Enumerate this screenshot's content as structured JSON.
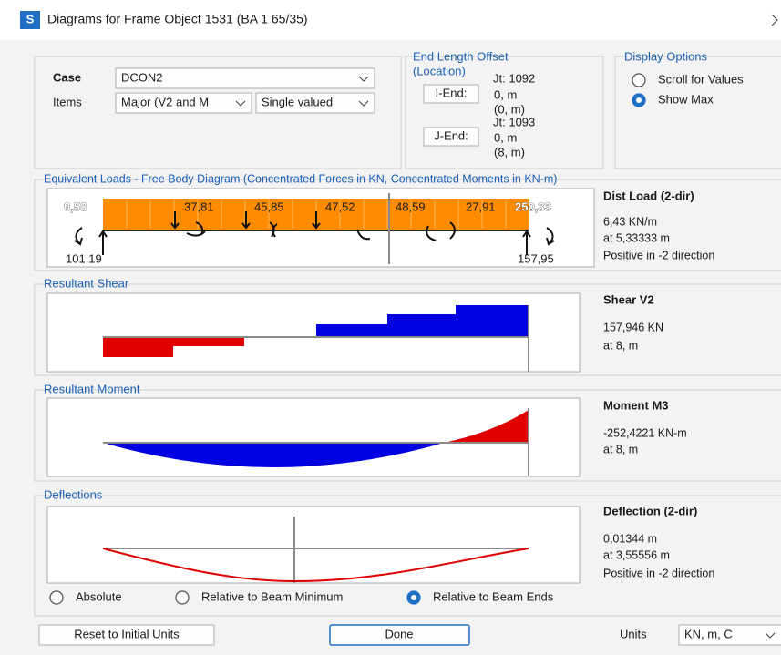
{
  "window": {
    "title": "Diagrams for Frame Object 1531  (BA 1 65/35)",
    "icon": "S"
  },
  "case": {
    "label": "Case",
    "value": "DCON2"
  },
  "items": {
    "label": "Items",
    "value": "Major (V2 and M",
    "mode": "Single valued"
  },
  "end_length_offset": {
    "title": "End Length Offset",
    "subtitle": "(Location)",
    "i_end": {
      "button": "I-End:",
      "joint": "Jt:  1092",
      "offset": "0, m",
      "location": "(0, m)"
    },
    "j_end": {
      "button": "J-End:",
      "joint": "Jt:  1093",
      "offset": "0, m",
      "location": "(8, m)"
    }
  },
  "display_options": {
    "title": "Display Options",
    "options": [
      {
        "label": "Scroll for Values",
        "selected": false
      },
      {
        "label": "Show Max",
        "selected": true
      }
    ]
  },
  "free_body": {
    "title": "Equivalent Loads - Free Body Diagram  (Concentrated Forces in KN, Concentrated Moments in KN-m)",
    "loads": [
      "0,58",
      "37,81",
      "45,85",
      "47,52",
      "48,59",
      "27,91",
      "250,33"
    ],
    "reactions": [
      "101,19",
      "157,95"
    ],
    "info": [
      "Dist Load (2-dir)",
      "6,43 KN/m",
      "at 5,33333 m",
      "Positive in -2 direction"
    ]
  },
  "shear": {
    "title": "Resultant Shear",
    "info": [
      "Shear V2",
      "157,946 KN",
      "at 8, m"
    ]
  },
  "moment": {
    "title": "Resultant Moment",
    "info": [
      "Moment M3",
      "-252,4221 KN-m",
      "at 8, m"
    ]
  },
  "deflections": {
    "title": "Deflections",
    "info": [
      "Deflection (2-dir)",
      "0,01344 m",
      "at 3,55556 m",
      "Positive in -2 direction"
    ],
    "modes": [
      {
        "label": "Absolute",
        "selected": false
      },
      {
        "label": "Relative to Beam Minimum",
        "selected": false
      },
      {
        "label": "Relative to Beam Ends",
        "selected": true
      }
    ]
  },
  "footer": {
    "reset": "Reset to Initial Units",
    "done": "Done",
    "units_label": "Units",
    "units_value": "KN, m, C"
  }
}
